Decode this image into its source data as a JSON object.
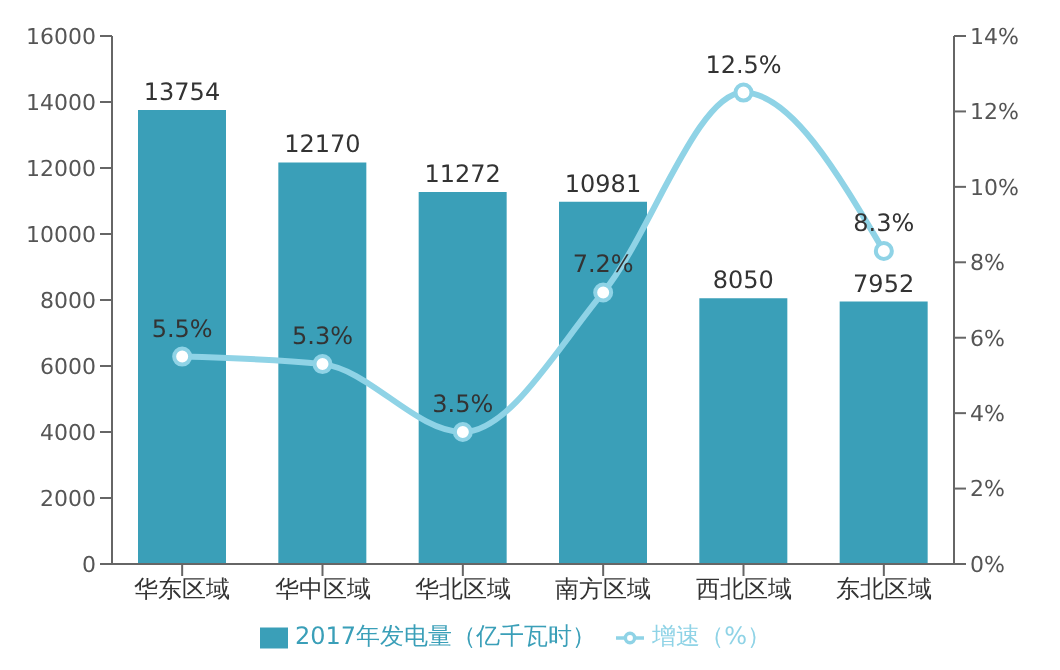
{
  "chart_data": {
    "type": "bar",
    "categories": [
      "华东区域",
      "华中区域",
      "华北区域",
      "南方区域",
      "西北区域",
      "东北区域"
    ],
    "series": [
      {
        "name": "2017年发电量（亿千瓦时）",
        "color": "#3a9fb8",
        "values": [
          13754,
          12170,
          11272,
          10981,
          8050,
          7952
        ]
      },
      {
        "name": "增速（%）",
        "type": "line",
        "axis": "y2",
        "color": "#8fd3e6",
        "values": [
          5.5,
          5.3,
          3.5,
          7.2,
          12.5,
          8.3
        ],
        "value_labels": [
          "5.5%",
          "5.3%",
          "3.5%",
          "7.2%",
          "12.5%",
          "8.3%"
        ]
      }
    ],
    "data_labels": true,
    "ylim": [
      0,
      16000
    ],
    "yticks": [
      0,
      2000,
      4000,
      6000,
      8000,
      10000,
      12000,
      14000,
      16000
    ],
    "y2lim": [
      0,
      14
    ],
    "y2ticks": [
      {
        "value": 0,
        "label": "0%"
      },
      {
        "value": 2,
        "label": "2%"
      },
      {
        "value": 4,
        "label": "4%"
      },
      {
        "value": 6,
        "label": "6%"
      },
      {
        "value": 8,
        "label": "8%"
      },
      {
        "value": 10,
        "label": "10%"
      },
      {
        "value": 12,
        "label": "12%"
      },
      {
        "value": 14,
        "label": "14%"
      }
    ],
    "grid": false,
    "legend": "bottom",
    "marker": "circle",
    "line_style": "solid"
  }
}
